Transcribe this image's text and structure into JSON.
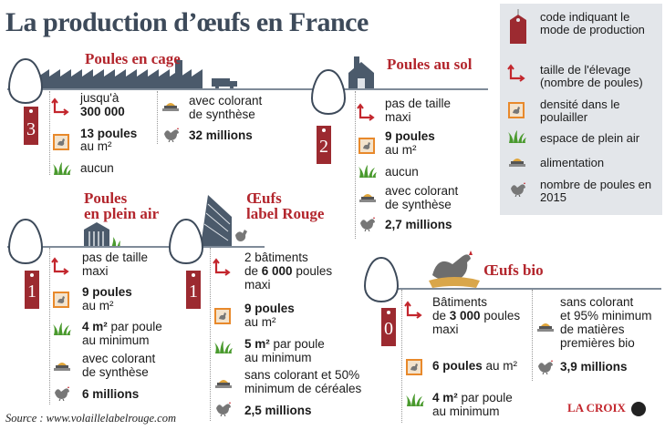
{
  "title": "La production d’œufs en France",
  "legend": {
    "tag": "code indiquant le mode de production",
    "size": "taille de l'élevage (nombre de poules)",
    "density": "densité dans le poulailler",
    "outdoor": "espace de plein air",
    "food": "alimentation",
    "count": "nombre de poules en 2015"
  },
  "cage": {
    "title": "Poules en cage",
    "code": "3",
    "size_a": "jusqu'à",
    "size_b": "300 000",
    "density_a": "13 poules",
    "density_b": "au m²",
    "outdoor": "aucun",
    "food_a": "avec colorant",
    "food_b": "de synthèse",
    "count": "32 millions"
  },
  "sol": {
    "title": "Poules au sol",
    "code": "2",
    "size_a": "pas de taille",
    "size_b": "maxi",
    "density_a": "9 poules",
    "density_b": "au m²",
    "outdoor": "aucun",
    "food_a": "avec colorant",
    "food_b": "de synthèse",
    "count": "2,7 millions"
  },
  "plein_air": {
    "title_a": "Poules",
    "title_b": "en plein air",
    "code": "1",
    "size_a": "pas de taille",
    "size_b": "maxi",
    "density_a": "9 poules",
    "density_b": "au m²",
    "outdoor_a": "4 m²",
    "outdoor_a2": " par poule",
    "outdoor_b": "au minimum",
    "food_a": "avec colorant",
    "food_b": "de synthèse",
    "count": "6 millions"
  },
  "label_rouge": {
    "title_a": "Œufs",
    "title_b": "label Rouge",
    "code": "1",
    "size_a": "2 bâtiments",
    "size_b1": "de ",
    "size_b2": "6 000",
    "size_b3": " poules",
    "size_c": "maxi",
    "density_a": "9 poules",
    "density_b": "au m²",
    "outdoor_a": "5 m²",
    "outdoor_a2": " par poule",
    "outdoor_b": "au minimum",
    "food_a": "sans colorant et 50%",
    "food_b": "minimum de céréales",
    "count": "2,5 millions"
  },
  "bio": {
    "title": "Œufs bio",
    "code": "0",
    "size_a": "Bâtiments",
    "size_b1": "de ",
    "size_b2": "3 000",
    "size_b3": " poules",
    "size_c": "maxi",
    "density_a": "6 poules",
    "density_b": " au m²",
    "outdoor_a": "4 m²",
    "outdoor_a2": " par poule",
    "outdoor_b": "au minimum",
    "food_a": "sans colorant",
    "food_b": "et 95% minimum",
    "food_c": "de matières",
    "food_d": "premières bio",
    "count": "3,9 millions"
  },
  "footer": "Source : www.volaillelabelrouge.com",
  "logo": "LA CROIX",
  "colors": {
    "red": "#b3262d",
    "slate": "#3d4a5a",
    "green": "#4a9a2e",
    "orange": "#e8892b",
    "legend_bg": "#e3e6ea"
  }
}
